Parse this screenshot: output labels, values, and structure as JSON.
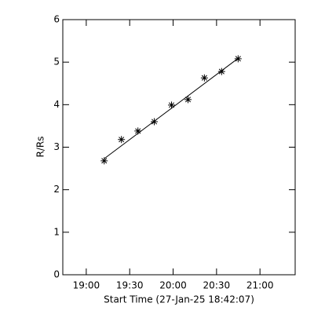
{
  "chart_data": {
    "type": "scatter",
    "x_label": "Start Time (27-Jan-25 18:42:07)",
    "y_label": "R/Rs",
    "xlim": [
      1123.8,
      1284.3
    ],
    "ylim": [
      0,
      6
    ],
    "xticks": [
      {
        "value": 1140,
        "label": "19:00"
      },
      {
        "value": 1170,
        "label": "19:30"
      },
      {
        "value": 1200,
        "label": "20:00"
      },
      {
        "value": 1230,
        "label": "20:30"
      },
      {
        "value": 1260,
        "label": "21:00"
      }
    ],
    "yticks": [
      0,
      1,
      2,
      3,
      4,
      5,
      6
    ],
    "color": "#000000",
    "series": [
      {
        "kind": "points",
        "x": [
          1152.4,
          1164.3,
          1175.7,
          1187.0,
          1198.9,
          1210.3,
          1221.6,
          1233.5,
          1244.9
        ],
        "values": [
          2.68,
          3.18,
          3.38,
          3.6,
          3.99,
          4.12,
          4.63,
          4.78,
          5.08
        ]
      },
      {
        "kind": "line",
        "x": [
          1152.4,
          1244.9
        ],
        "values": [
          2.73,
          5.09
        ]
      }
    ]
  }
}
